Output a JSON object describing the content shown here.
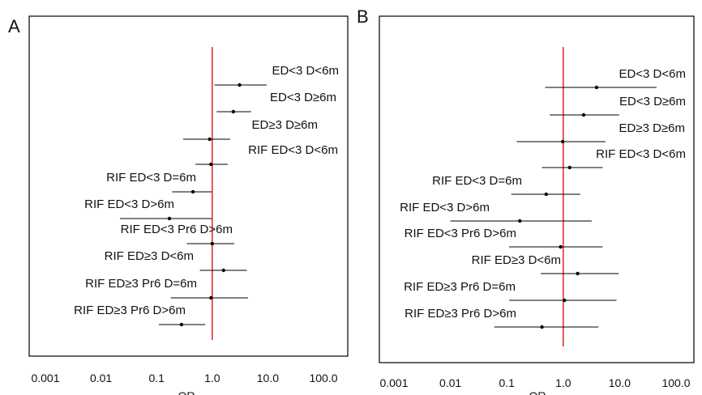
{
  "colors": {
    "reference_line": "#e0261b",
    "marks": "#000000",
    "frame": "#000000"
  },
  "chart_data": [
    {
      "type": "forest",
      "panel": "A",
      "xlabel": "OR",
      "x_scale": "log",
      "xlim": [
        0.001,
        100.0
      ],
      "xticks": [
        "0.001",
        "0.01",
        "0.1",
        "1.0",
        "10.0",
        "100.0"
      ],
      "reference_x": 1.0,
      "rows": [
        {
          "label": "ED<3 D<6m",
          "or": 3.1,
          "lo": 1.1,
          "hi": 9.5
        },
        {
          "label": "ED<3 D≥6m",
          "or": 2.4,
          "lo": 1.2,
          "hi": 5.0
        },
        {
          "label": "ED≥3 D≥6m",
          "or": 0.9,
          "lo": 0.3,
          "hi": 2.1
        },
        {
          "label": "RIF ED<3 D<6m",
          "or": 0.95,
          "lo": 0.5,
          "hi": 1.9
        },
        {
          "label": "RIF ED<3 D=6m",
          "or": 0.45,
          "lo": 0.19,
          "hi": 0.98
        },
        {
          "label": "RIF ED<3 D>6m",
          "or": 0.17,
          "lo": 0.022,
          "hi": 0.98
        },
        {
          "label": "RIF ED<3 Pr6 D>6m",
          "or": 1.0,
          "lo": 0.35,
          "hi": 2.5
        },
        {
          "label": "RIF ED≥3 D<6m",
          "or": 1.6,
          "lo": 0.6,
          "hi": 4.2
        },
        {
          "label": "RIF ED≥3 Pr6 D=6m",
          "or": 0.95,
          "lo": 0.18,
          "hi": 4.4
        },
        {
          "label": "RIF ED≥3 Pr6 D>6m",
          "or": 0.28,
          "lo": 0.11,
          "hi": 0.75
        }
      ]
    },
    {
      "type": "forest",
      "panel": "B",
      "xlabel": "OR",
      "x_scale": "log",
      "xlim": [
        0.001,
        100.0
      ],
      "xticks": [
        "0.001",
        "0.01",
        "0.1",
        "1.0",
        "10.0",
        "100.0"
      ],
      "reference_x": 1.0,
      "rows": [
        {
          "label": "ED<3 D<6m",
          "or": 3.9,
          "lo": 0.48,
          "hi": 45.0
        },
        {
          "label": "ED<3 D≥6m",
          "or": 2.3,
          "lo": 0.58,
          "hi": 9.8
        },
        {
          "label": "ED≥3 D≥6m",
          "or": 0.98,
          "lo": 0.15,
          "hi": 5.6
        },
        {
          "label": "RIF ED<3 D<6m",
          "or": 1.3,
          "lo": 0.42,
          "hi": 5.0
        },
        {
          "label": "RIF ED<3 D=6m",
          "or": 0.5,
          "lo": 0.12,
          "hi": 2.0
        },
        {
          "label": "RIF ED<3 D>6m",
          "or": 0.17,
          "lo": 0.01,
          "hi": 3.2
        },
        {
          "label": "RIF ED<3 Pr6 D>6m",
          "or": 0.9,
          "lo": 0.11,
          "hi": 5.0
        },
        {
          "label": "RIF ED≥3 D<6m",
          "or": 1.8,
          "lo": 0.4,
          "hi": 9.6
        },
        {
          "label": "RIF ED≥3 Pr6 D=6m",
          "or": 1.05,
          "lo": 0.11,
          "hi": 8.8
        },
        {
          "label": "RIF ED≥3 Pr6 D>6m",
          "or": 0.42,
          "lo": 0.06,
          "hi": 4.2
        }
      ]
    }
  ]
}
